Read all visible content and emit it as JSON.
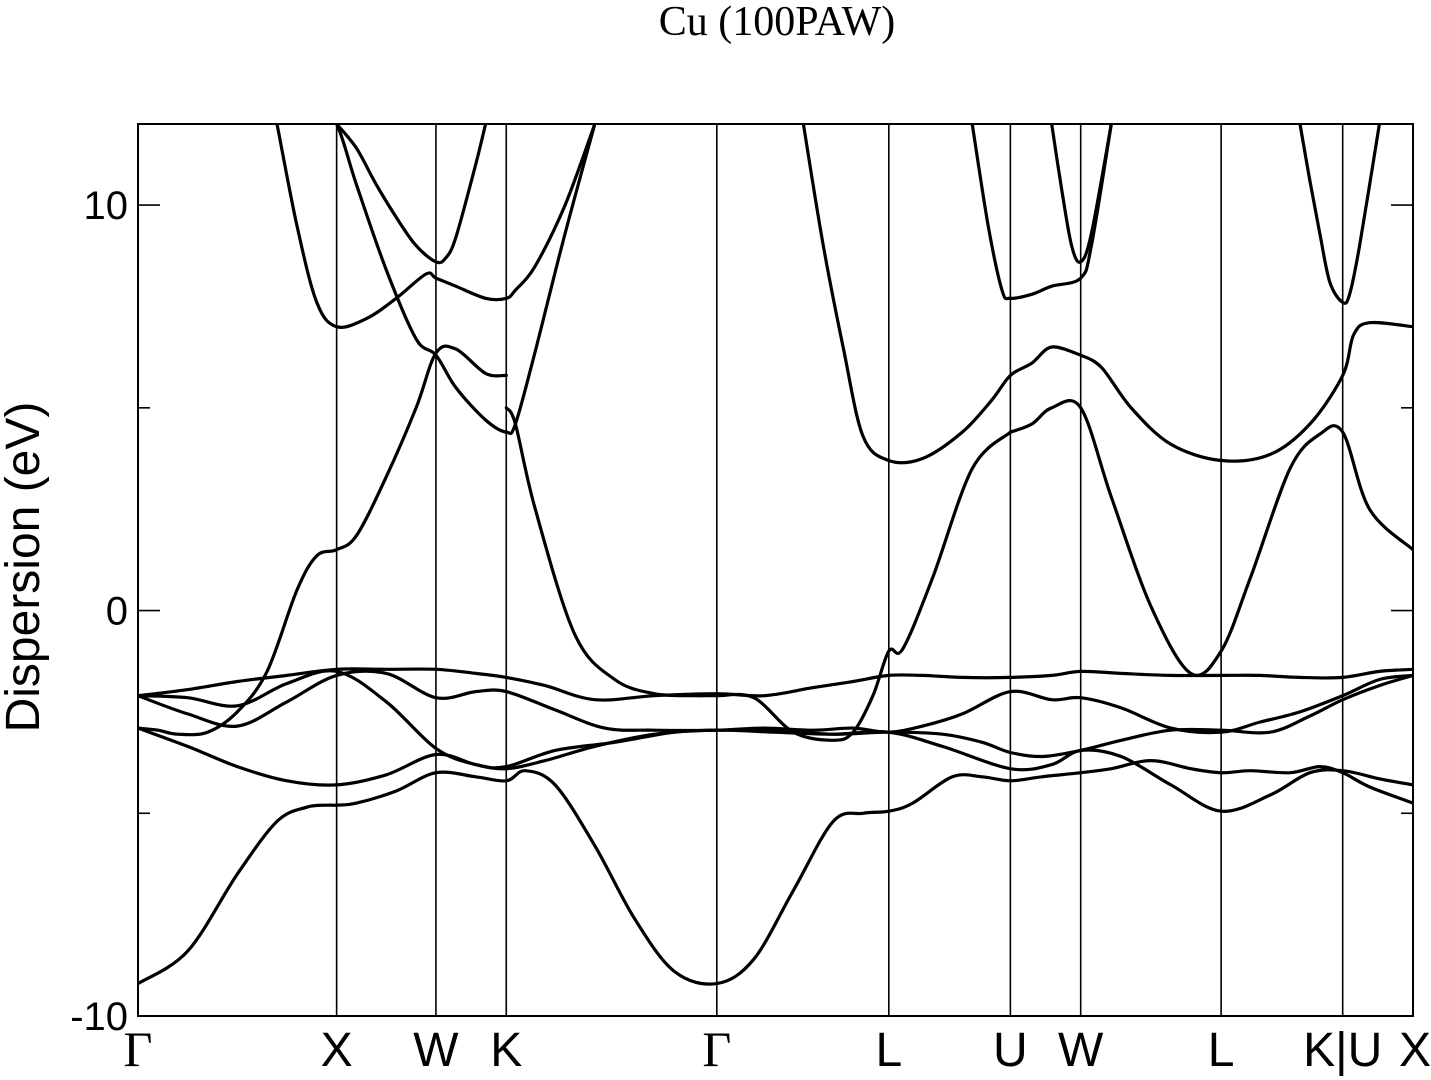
{
  "chart_data": {
    "type": "line",
    "title": "Cu (100PAW)",
    "xlabel": "",
    "ylabel": "Dispersion (eV)",
    "ylim": [
      -10,
      12
    ],
    "y_ticks": [
      {
        "value": -10,
        "label": "-10"
      },
      {
        "value": 0,
        "label": "0"
      },
      {
        "value": 10,
        "label": "10"
      }
    ],
    "y_minor_ticks": [
      -5,
      5
    ],
    "grid": false,
    "legend": "none",
    "k_path_labels": [
      {
        "label": "Γ",
        "x": 0,
        "serif": true
      },
      {
        "label": "X",
        "x": 1,
        "serif": false
      },
      {
        "label": "W",
        "x": 1.5,
        "serif": false
      },
      {
        "label": "K",
        "x": 1.854,
        "serif": false
      },
      {
        "label": "Γ",
        "x": 2.914,
        "serif": true
      },
      {
        "label": "L",
        "x": 3.78,
        "serif": false
      },
      {
        "label": "U",
        "x": 4.392,
        "serif": false
      },
      {
        "label": "W",
        "x": 4.746,
        "serif": false
      },
      {
        "label": "L",
        "x": 5.453,
        "serif": false
      },
      {
        "label": "K|U",
        "x": 6.065,
        "serif": false
      },
      {
        "label": "X",
        "x": 6.419,
        "serif": false
      }
    ],
    "xlim": [
      0,
      6.419
    ],
    "series": [
      {
        "x": [
          0,
          0.25,
          0.5,
          0.7,
          0.85,
          0.95,
          1.0,
          1.1,
          1.3,
          1.5,
          1.7,
          1.854,
          1.95,
          2.1,
          2.3,
          2.5,
          2.7,
          2.914,
          3.1,
          3.3,
          3.5,
          3.65,
          3.78,
          3.9,
          4.1,
          4.25,
          4.392,
          4.55,
          4.746,
          4.9,
          5.1,
          5.3,
          5.453,
          5.6,
          5.8,
          5.95,
          6.065,
          6.2,
          6.419
        ],
        "y": [
          -9.2,
          -8.4,
          -6.5,
          -5.2,
          -4.85,
          -4.8,
          -4.8,
          -4.75,
          -4.45,
          -4.0,
          -4.1,
          -4.2,
          -3.95,
          -4.3,
          -5.8,
          -7.6,
          -8.9,
          -9.2,
          -8.6,
          -6.9,
          -5.2,
          -5.0,
          -4.95,
          -4.75,
          -4.1,
          -4.1,
          -4.2,
          -4.1,
          -4.0,
          -3.9,
          -3.7,
          -3.9,
          -4.0,
          -3.95,
          -4.0,
          -3.85,
          -4.0,
          -4.35,
          -4.75
        ]
      },
      {
        "x": [
          0,
          0.25,
          0.5,
          0.75,
          1.0,
          1.25,
          1.5,
          1.7,
          1.854,
          2.05,
          2.3,
          2.6,
          2.914,
          3.2,
          3.5,
          3.78,
          4.05,
          4.392,
          4.6,
          4.746,
          4.95,
          5.2,
          5.453,
          5.7,
          5.9,
          6.065,
          6.25,
          6.419
        ],
        "y": [
          -2.9,
          -3.35,
          -3.85,
          -4.2,
          -4.3,
          -4.05,
          -3.55,
          -3.8,
          -3.9,
          -3.7,
          -3.35,
          -3.05,
          -2.95,
          -3.0,
          -3.05,
          -3.0,
          -3.35,
          -3.9,
          -3.8,
          -3.45,
          -3.6,
          -4.3,
          -4.95,
          -4.55,
          -4.0,
          -3.95,
          -4.15,
          -4.3
        ]
      },
      {
        "x": [
          0,
          0.25,
          0.5,
          0.75,
          1.0,
          1.25,
          1.5,
          1.7,
          1.854,
          2.1,
          2.4,
          2.7,
          2.914,
          3.2,
          3.5,
          3.78,
          4.05,
          4.25,
          4.392,
          4.55,
          4.746,
          4.95,
          5.2,
          5.453,
          5.7,
          5.9,
          6.065,
          6.25,
          6.419
        ],
        "y": [
          -2.1,
          -2.15,
          -2.35,
          -1.8,
          -1.5,
          -2.25,
          -3.4,
          -3.8,
          -3.85,
          -3.45,
          -3.25,
          -3.0,
          -2.95,
          -2.95,
          -3.05,
          -3.0,
          -3.05,
          -3.25,
          -3.5,
          -3.6,
          -3.45,
          -3.2,
          -2.95,
          -2.95,
          -3.0,
          -2.6,
          -2.2,
          -1.85,
          -1.6
        ]
      },
      {
        "x": [
          0,
          0.25,
          0.5,
          0.75,
          1.0,
          1.25,
          1.5,
          1.7,
          1.854,
          2.1,
          2.35,
          2.6,
          2.914,
          3.15,
          3.4,
          3.6,
          3.78,
          3.95,
          4.15,
          4.392,
          4.6,
          4.746,
          4.95,
          5.2,
          5.453,
          5.65,
          5.85,
          6.065,
          6.25,
          6.419
        ],
        "y": [
          -2.1,
          -2.55,
          -2.85,
          -2.25,
          -1.6,
          -1.55,
          -2.15,
          -2.0,
          -2.0,
          -2.45,
          -2.9,
          -2.95,
          -2.95,
          -2.9,
          -2.95,
          -2.9,
          -3.0,
          -2.85,
          -2.55,
          -2.0,
          -2.2,
          -2.15,
          -2.4,
          -2.9,
          -3.0,
          -2.75,
          -2.5,
          -2.1,
          -1.7,
          -1.6
        ]
      },
      {
        "x": [
          0,
          0.25,
          0.5,
          0.75,
          1.0,
          1.25,
          1.5,
          1.7,
          1.854,
          2.05,
          2.3,
          2.6,
          2.914,
          3.15,
          3.4,
          3.6,
          3.78,
          3.95,
          4.15,
          4.392,
          4.6,
          4.746,
          4.95,
          5.2,
          5.453,
          5.65,
          5.85,
          6.065,
          6.25,
          6.419
        ],
        "y": [
          -2.1,
          -1.95,
          -1.75,
          -1.6,
          -1.45,
          -1.45,
          -1.45,
          -1.55,
          -1.65,
          -1.85,
          -2.2,
          -2.1,
          -2.05,
          -2.1,
          -1.9,
          -1.75,
          -1.6,
          -1.6,
          -1.65,
          -1.65,
          -1.6,
          -1.5,
          -1.55,
          -1.6,
          -1.6,
          -1.6,
          -1.65,
          -1.65,
          -1.5,
          -1.45
        ]
      },
      {
        "x": [
          0,
          0.1,
          0.2,
          0.35,
          0.5,
          0.65,
          0.8,
          0.9,
          1.0,
          1.1,
          1.25,
          1.4,
          1.5,
          1.6,
          1.75,
          1.854
        ],
        "y": [
          -2.9,
          -2.95,
          -3.05,
          -3.0,
          -2.5,
          -1.5,
          0.5,
          1.35,
          1.5,
          1.85,
          3.3,
          5.0,
          6.35,
          6.45,
          5.85,
          5.8
        ]
      },
      {
        "x": [
          1.854,
          1.9,
          2.0,
          2.2,
          2.4,
          2.6,
          2.8,
          2.914,
          3.1,
          3.3,
          3.5,
          3.6,
          3.7,
          3.78,
          3.85,
          4.0,
          4.2,
          4.392
        ],
        "y": [
          5.0,
          4.6,
          2.5,
          -0.6,
          -1.7,
          -2.05,
          -2.1,
          -2.1,
          -2.15,
          -3.0,
          -3.2,
          -3.0,
          -2.1,
          -1.0,
          -0.95,
          0.8,
          3.5,
          4.4
        ]
      },
      {
        "x": [
          4.392,
          4.5,
          4.6,
          4.746,
          4.9,
          5.1,
          5.3,
          5.453,
          5.6,
          5.8,
          5.95,
          6.065,
          6.2,
          6.419
        ],
        "y": [
          4.4,
          4.6,
          5.0,
          5.0,
          2.8,
          0.1,
          -1.55,
          -1.0,
          0.8,
          3.5,
          4.35,
          4.4,
          2.5,
          1.5
        ]
      },
      {
        "x": [
          0.7,
          0.8,
          0.9,
          1.0,
          1.15,
          1.3,
          1.45,
          1.5,
          1.6,
          1.75,
          1.854,
          1.9,
          2.0,
          2.15,
          2.3
        ],
        "y": [
          12.0,
          9.5,
          7.6,
          7.0,
          7.2,
          7.7,
          8.3,
          8.2,
          8.0,
          7.7,
          7.7,
          7.9,
          8.5,
          10.0,
          12.0
        ]
      },
      {
        "x": [
          0.9,
          1.0,
          1.1,
          1.25,
          1.4,
          1.5,
          1.6,
          1.75,
          1.854,
          1.9,
          2.0,
          2.15,
          2.3
        ],
        "y": [
          12.5,
          12.0,
          10.5,
          8.4,
          6.7,
          6.3,
          5.5,
          4.7,
          4.4,
          4.6,
          6.4,
          9.3,
          12.0
        ]
      },
      {
        "x": [
          1.0,
          1.1,
          1.2,
          1.3,
          1.4,
          1.5,
          1.55,
          1.6,
          1.7,
          1.75
        ],
        "y": [
          12.0,
          11.4,
          10.5,
          9.7,
          9.0,
          8.6,
          8.7,
          9.2,
          11.0,
          12.0
        ]
      },
      {
        "x": [
          3.35,
          3.45,
          3.55,
          3.65,
          3.78,
          3.95,
          4.15,
          4.3,
          4.392,
          4.5,
          4.6,
          4.746
        ],
        "y": [
          12.0,
          9.0,
          6.5,
          4.3,
          3.7,
          3.75,
          4.4,
          5.2,
          5.8,
          6.1,
          6.5,
          6.3
        ]
      },
      {
        "x": [
          4.746,
          4.85,
          5.0,
          5.2,
          5.453,
          5.7,
          5.9,
          6.065,
          6.12,
          6.2,
          6.419
        ],
        "y": [
          6.3,
          6.0,
          5.0,
          4.1,
          3.7,
          3.85,
          4.6,
          5.8,
          6.8,
          7.1,
          7.0
        ]
      },
      {
        "x": [
          4.2,
          4.28,
          4.35,
          4.392,
          4.5,
          4.6,
          4.746,
          4.8,
          4.9
        ],
        "y": [
          12.0,
          9.5,
          7.9,
          7.7,
          7.8,
          8.0,
          8.2,
          9.0,
          12.0
        ]
      },
      {
        "x": [
          4.6,
          4.65,
          4.7,
          4.746,
          4.8,
          4.9
        ],
        "y": [
          12.0,
          10.4,
          9.0,
          8.6,
          9.3,
          12.0
        ]
      },
      {
        "x": [
          5.85,
          5.9,
          5.95,
          6.0,
          6.065,
          6.1,
          6.15,
          6.25
        ],
        "y": [
          12.0,
          10.6,
          9.3,
          8.1,
          7.6,
          7.8,
          9.0,
          12.0
        ]
      }
    ]
  }
}
